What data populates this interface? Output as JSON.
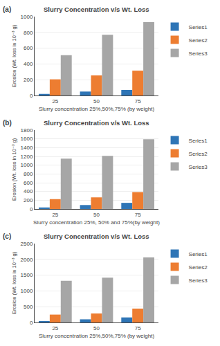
{
  "chart_data": [
    {
      "type": "bar",
      "title": "Slurry Concentration v/s Wt. Loss",
      "xlabel": "Slurry concentration 25%,50%,75% (by weight)",
      "ylabel": "Erosion (Wt. loss in 10⁻³ g)",
      "annotations": [
        "(a)"
      ],
      "categories": [
        "25",
        "50",
        "75"
      ],
      "series": [
        {
          "name": "Series1",
          "color": "#2e75b6",
          "values": [
            20,
            50,
            70
          ]
        },
        {
          "name": "Series2",
          "color": "#ed7d31",
          "values": [
            205,
            255,
            315
          ]
        },
        {
          "name": "Series3",
          "color": "#a6a6a6",
          "values": [
            510,
            770,
            930
          ]
        }
      ],
      "ylim": [
        0,
        1000
      ],
      "yticks": [
        0,
        200,
        400,
        600,
        800,
        1000
      ],
      "grid": true,
      "legend": "right"
    },
    {
      "type": "bar",
      "title": "Slurry Concentration v/s Wt. Loss",
      "xlabel": "Slurry concentration 25%, 50% and 75%(by weight)",
      "ylabel": "Erosion (Wt. loss in 10⁻³ g)",
      "annotations": [
        "(b)"
      ],
      "categories": [
        "25",
        "50",
        "75"
      ],
      "series": [
        {
          "name": "Series1",
          "color": "#2e75b6",
          "values": [
            35,
            90,
            140
          ]
        },
        {
          "name": "Series2",
          "color": "#ed7d31",
          "values": [
            225,
            265,
            385
          ]
        },
        {
          "name": "Series3",
          "color": "#a6a6a6",
          "values": [
            1150,
            1210,
            1590
          ]
        }
      ],
      "ylim": [
        0,
        1800
      ],
      "yticks": [
        0,
        200,
        400,
        600,
        800,
        1000,
        1200,
        1400,
        1600,
        1800
      ],
      "grid": true,
      "legend": "right"
    },
    {
      "type": "bar",
      "title": "Slurry Concentration v/s Wt. Loss",
      "xlabel": "Slurry concentration 25%,50%,75% (by weight)",
      "ylabel": "Erosion (Wt. loss in 10⁻³ g)",
      "annotations": [
        "(c)"
      ],
      "categories": [
        "25",
        "50",
        "75"
      ],
      "series": [
        {
          "name": "Series1",
          "color": "#2e75b6",
          "values": [
            40,
            100,
            160
          ]
        },
        {
          "name": "Series2",
          "color": "#ed7d31",
          "values": [
            250,
            285,
            440
          ]
        },
        {
          "name": "Series3",
          "color": "#a6a6a6",
          "values": [
            1320,
            1420,
            2060
          ]
        }
      ],
      "ylim": [
        0,
        2500
      ],
      "yticks": [
        0,
        500,
        1000,
        1500,
        2000,
        2500
      ],
      "grid": true,
      "legend": "right"
    }
  ]
}
